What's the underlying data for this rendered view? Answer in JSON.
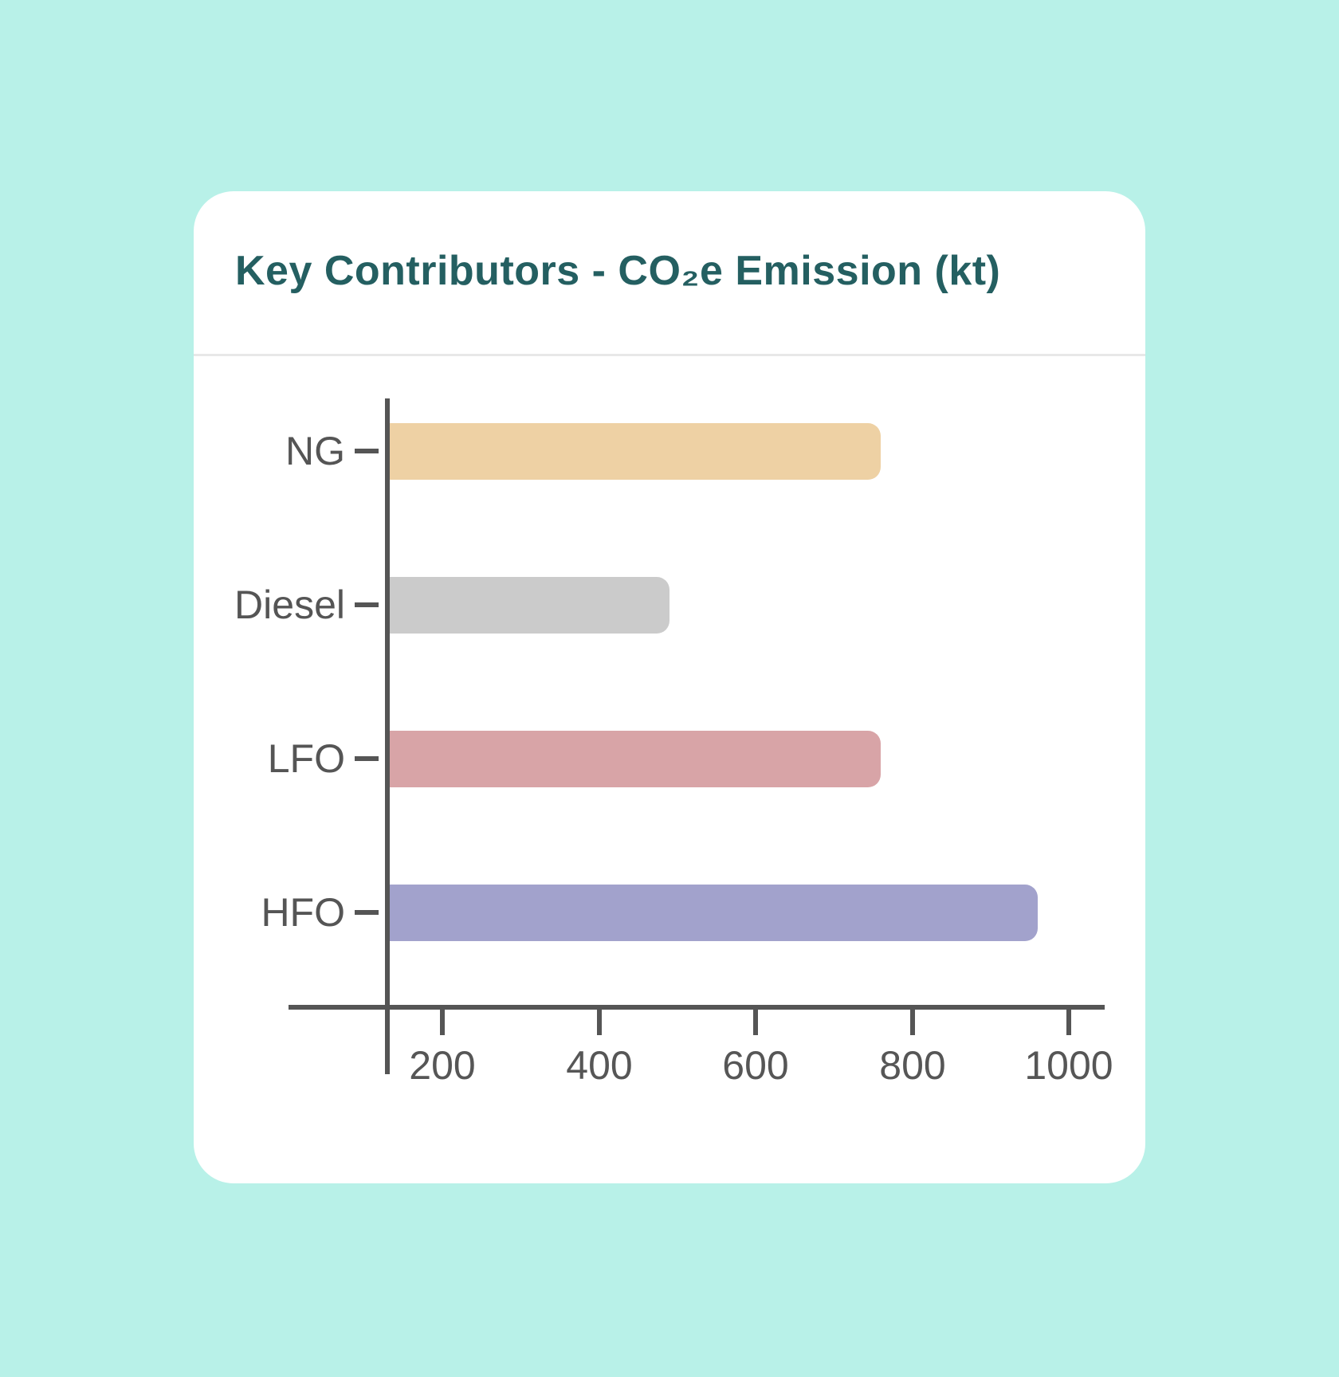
{
  "page": {
    "background_color": "#b8f1e8",
    "card_background": "#ffffff"
  },
  "chart_data": {
    "type": "bar",
    "orientation": "horizontal",
    "title": "Key Contributors - CO₂e Emission (kt)",
    "title_color": "#245f61",
    "categories": [
      "NG",
      "Diesel",
      "LFO",
      "HFO"
    ],
    "values": [
      760,
      490,
      760,
      960
    ],
    "bar_colors": [
      "#eed1a4",
      "#cbcbcb",
      "#d8a4a7",
      "#a2a2cc"
    ],
    "xticks": [
      200,
      400,
      600,
      800,
      1000
    ],
    "xlim": [
      0,
      1045
    ],
    "xlabel": "",
    "ylabel": "",
    "axis_color": "#555555",
    "tick_label_color": "#565656",
    "grid": false,
    "legend": false
  }
}
